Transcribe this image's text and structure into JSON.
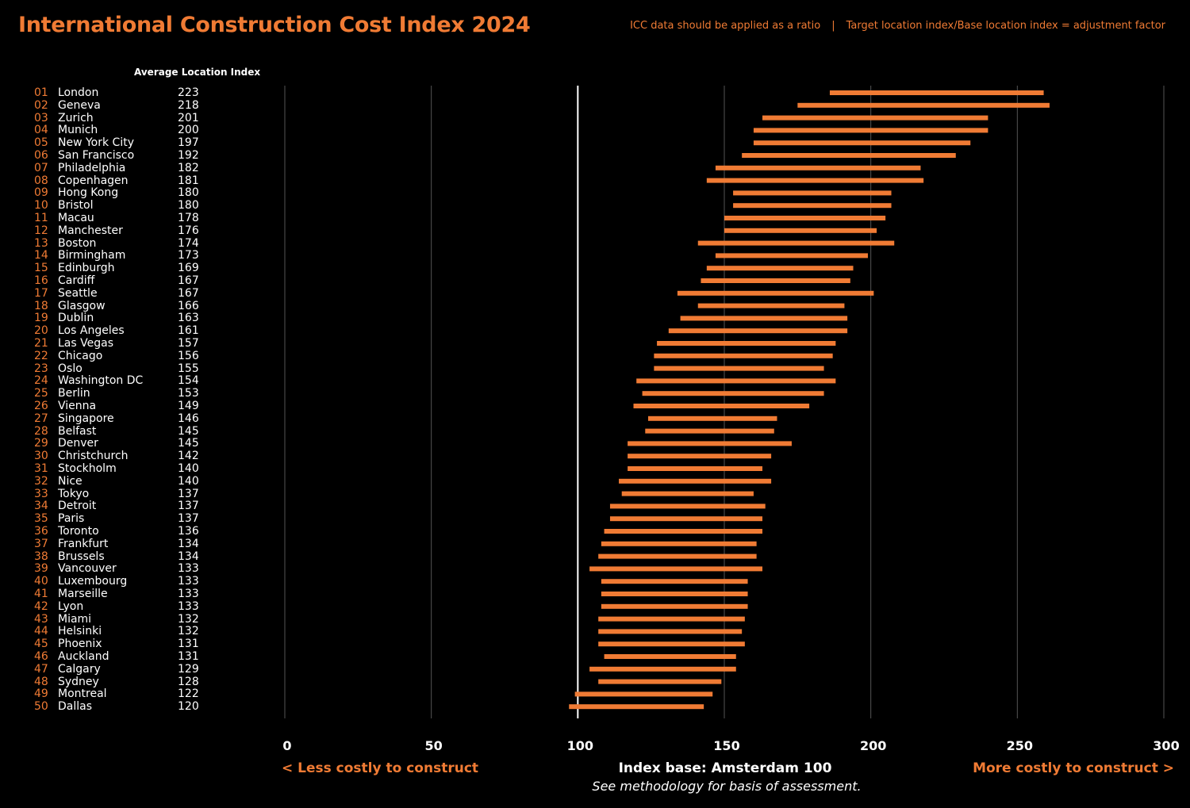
{
  "header": {
    "title": "International Construction Cost Index 2024",
    "note_left": "ICC data should be applied as a ratio",
    "note_sep": "|",
    "note_right": "Target location index/Base location index = adjustment factor"
  },
  "table": {
    "avg_header": "Average Location Index"
  },
  "footer": {
    "less_costly": "< Less costly to construct",
    "more_costly": "More costly to construct >",
    "index_base": "Index base: Amsterdam 100",
    "methodology": "See methodology for basis of assessment."
  },
  "colors": {
    "accent": "#f07b34",
    "background": "#000000",
    "text": "#ffffff",
    "grid": "#555555",
    "baseline": "#ffffff"
  },
  "chart_data": {
    "type": "range-bar",
    "title": "International Construction Cost Index 2024",
    "xlim": [
      0,
      300
    ],
    "xticks": [
      0,
      50,
      100,
      150,
      200,
      250,
      300
    ],
    "base_value": 100,
    "rows": [
      {
        "rank": "01",
        "city": "London",
        "avg": 223,
        "low": 186,
        "high": 259
      },
      {
        "rank": "02",
        "city": "Geneva",
        "avg": 218,
        "low": 175,
        "high": 261
      },
      {
        "rank": "03",
        "city": "Zurich",
        "avg": 201,
        "low": 163,
        "high": 240
      },
      {
        "rank": "04",
        "city": "Munich",
        "avg": 200,
        "low": 160,
        "high": 240
      },
      {
        "rank": "05",
        "city": "New York City",
        "avg": 197,
        "low": 160,
        "high": 234
      },
      {
        "rank": "06",
        "city": "San Francisco",
        "avg": 192,
        "low": 156,
        "high": 229
      },
      {
        "rank": "07",
        "city": "Philadelphia",
        "avg": 182,
        "low": 147,
        "high": 217
      },
      {
        "rank": "08",
        "city": "Copenhagen",
        "avg": 181,
        "low": 144,
        "high": 218
      },
      {
        "rank": "09",
        "city": "Hong Kong",
        "avg": 180,
        "low": 153,
        "high": 207
      },
      {
        "rank": "10",
        "city": "Bristol",
        "avg": 180,
        "low": 153,
        "high": 207
      },
      {
        "rank": "11",
        "city": "Macau",
        "avg": 178,
        "low": 150,
        "high": 205
      },
      {
        "rank": "12",
        "city": "Manchester",
        "avg": 176,
        "low": 150,
        "high": 202
      },
      {
        "rank": "13",
        "city": "Boston",
        "avg": 174,
        "low": 141,
        "high": 208
      },
      {
        "rank": "14",
        "city": "Birmingham",
        "avg": 173,
        "low": 147,
        "high": 199
      },
      {
        "rank": "15",
        "city": "Edinburgh",
        "avg": 169,
        "low": 144,
        "high": 194
      },
      {
        "rank": "16",
        "city": "Cardiff",
        "avg": 167,
        "low": 142,
        "high": 193
      },
      {
        "rank": "17",
        "city": "Seattle",
        "avg": 167,
        "low": 134,
        "high": 201
      },
      {
        "rank": "18",
        "city": "Glasgow",
        "avg": 166,
        "low": 141,
        "high": 191
      },
      {
        "rank": "19",
        "city": "Dublin",
        "avg": 163,
        "low": 135,
        "high": 192
      },
      {
        "rank": "20",
        "city": "Los Angeles",
        "avg": 161,
        "low": 131,
        "high": 192
      },
      {
        "rank": "21",
        "city": "Las Vegas",
        "avg": 157,
        "low": 127,
        "high": 188
      },
      {
        "rank": "22",
        "city": "Chicago",
        "avg": 156,
        "low": 126,
        "high": 187
      },
      {
        "rank": "23",
        "city": "Oslo",
        "avg": 155,
        "low": 126,
        "high": 184
      },
      {
        "rank": "24",
        "city": "Washington DC",
        "avg": 154,
        "low": 120,
        "high": 188
      },
      {
        "rank": "25",
        "city": "Berlin",
        "avg": 153,
        "low": 122,
        "high": 184
      },
      {
        "rank": "26",
        "city": "Vienna",
        "avg": 149,
        "low": 119,
        "high": 179
      },
      {
        "rank": "27",
        "city": "Singapore",
        "avg": 146,
        "low": 124,
        "high": 168
      },
      {
        "rank": "28",
        "city": "Belfast",
        "avg": 145,
        "low": 123,
        "high": 167
      },
      {
        "rank": "29",
        "city": "Denver",
        "avg": 145,
        "low": 117,
        "high": 173
      },
      {
        "rank": "30",
        "city": "Christchurch",
        "avg": 142,
        "low": 117,
        "high": 166
      },
      {
        "rank": "31",
        "city": "Stockholm",
        "avg": 140,
        "low": 117,
        "high": 163
      },
      {
        "rank": "32",
        "city": "Nice",
        "avg": 140,
        "low": 114,
        "high": 166
      },
      {
        "rank": "33",
        "city": "Tokyo",
        "avg": 137,
        "low": 115,
        "high": 160
      },
      {
        "rank": "34",
        "city": "Detroit",
        "avg": 137,
        "low": 111,
        "high": 164
      },
      {
        "rank": "35",
        "city": "Paris",
        "avg": 137,
        "low": 111,
        "high": 163
      },
      {
        "rank": "36",
        "city": "Toronto",
        "avg": 136,
        "low": 109,
        "high": 163
      },
      {
        "rank": "37",
        "city": "Frankfurt",
        "avg": 134,
        "low": 108,
        "high": 161
      },
      {
        "rank": "38",
        "city": "Brussels",
        "avg": 134,
        "low": 107,
        "high": 161
      },
      {
        "rank": "39",
        "city": "Vancouver",
        "avg": 133,
        "low": 104,
        "high": 163
      },
      {
        "rank": "40",
        "city": "Luxembourg",
        "avg": 133,
        "low": 108,
        "high": 158
      },
      {
        "rank": "41",
        "city": "Marseille",
        "avg": 133,
        "low": 108,
        "high": 158
      },
      {
        "rank": "42",
        "city": "Lyon",
        "avg": 133,
        "low": 108,
        "high": 158
      },
      {
        "rank": "43",
        "city": "Miami",
        "avg": 132,
        "low": 107,
        "high": 157
      },
      {
        "rank": "44",
        "city": "Helsinki",
        "avg": 132,
        "low": 107,
        "high": 156
      },
      {
        "rank": "45",
        "city": "Phoenix",
        "avg": 131,
        "low": 107,
        "high": 157
      },
      {
        "rank": "46",
        "city": "Auckland",
        "avg": 131,
        "low": 109,
        "high": 154
      },
      {
        "rank": "47",
        "city": "Calgary",
        "avg": 129,
        "low": 104,
        "high": 154
      },
      {
        "rank": "48",
        "city": "Sydney",
        "avg": 128,
        "low": 107,
        "high": 149
      },
      {
        "rank": "49",
        "city": "Montreal",
        "avg": 122,
        "low": 99,
        "high": 146
      },
      {
        "rank": "50",
        "city": "Dallas",
        "avg": 120,
        "low": 97,
        "high": 143
      }
    ]
  }
}
